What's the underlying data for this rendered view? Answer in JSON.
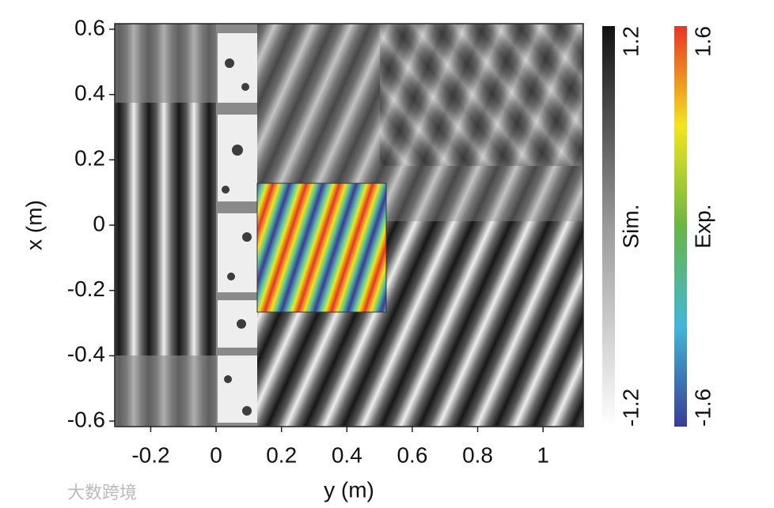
{
  "chart_data": {
    "type": "field-map",
    "xlabel": "y (m)",
    "ylabel": "x (m)",
    "xlim": [
      -0.31,
      1.123
    ],
    "xticks": [
      -0.2,
      0,
      0.2,
      0.4,
      0.6,
      0.8,
      1
    ],
    "ylim": [
      -0.617,
      0.617
    ],
    "yticks": [
      0.6,
      0.4,
      0.2,
      0,
      -0.2,
      -0.4,
      -0.6
    ],
    "colorbars": [
      {
        "label": "Sim.",
        "range": [
          -1.2,
          1.2
        ],
        "ticks": [
          -1.2,
          1.2
        ],
        "colors": [
          "#ffffff",
          "#9a9a9a",
          "#111111"
        ]
      },
      {
        "label": "Exp.",
        "range": [
          -1.6,
          1.6
        ],
        "ticks": [
          -1.6,
          1.6
        ],
        "colors": [
          "#3a3c96",
          "#44b6d8",
          "#6ab544",
          "#f2e51e",
          "#e83427"
        ]
      }
    ],
    "watermark": "大数跨境"
  }
}
